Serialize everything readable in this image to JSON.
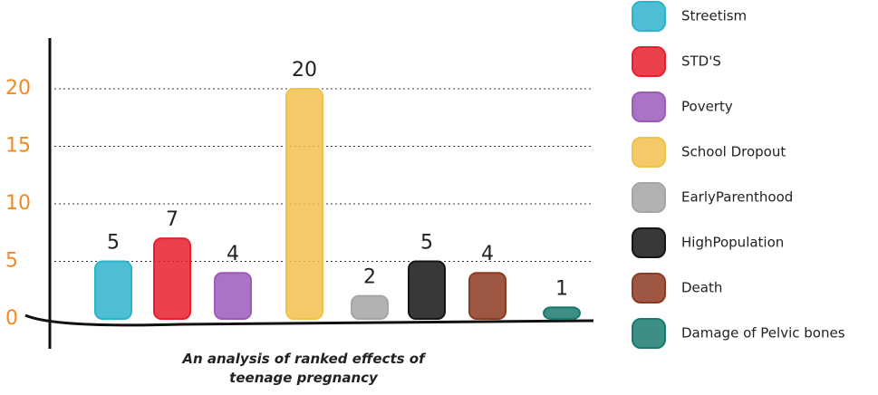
{
  "chart_data": {
    "type": "bar",
    "x_label": "An analysis of ranked effects of teenage pregnancy",
    "categories": [
      "Streetism",
      "STD'S",
      "Poverty",
      "School Dropout",
      "EarlyParenthood",
      "HighPopulation",
      "Death",
      "Damage of Pelvic bones"
    ],
    "values": [
      5,
      7,
      4,
      20,
      2,
      5,
      4,
      1
    ],
    "colors": [
      "#2fb3cc",
      "#e8202e",
      "#9b5bb8",
      "#f2c24e",
      "#a5a5a5",
      "#151515",
      "#8c3a22",
      "#1b7a70"
    ],
    "ylim": [
      0,
      20
    ],
    "yticks": [
      0,
      5,
      10,
      15,
      20
    ],
    "grid": true,
    "legend": "right"
  }
}
